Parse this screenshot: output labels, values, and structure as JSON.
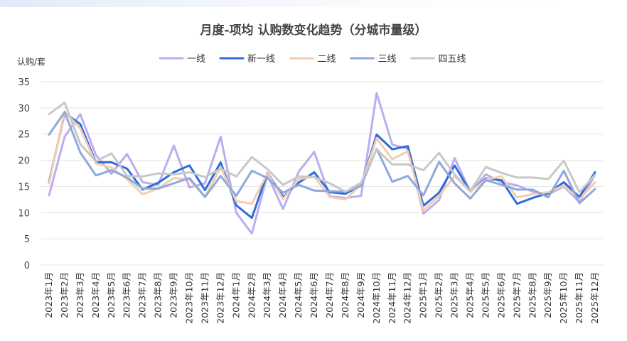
{
  "chart_data": {
    "type": "line",
    "title": "月度-项均  认购数变化趋势（分城市量级）",
    "ylabel": "认购/套",
    "ylim": [
      0,
      35
    ],
    "yticks": [
      0,
      5,
      10,
      15,
      20,
      25,
      30,
      35
    ],
    "grid": true,
    "legend_position": "top",
    "categories": [
      "2023年1月",
      "2023年2月",
      "2023年3月",
      "2023年4月",
      "2023年5月",
      "2023年6月",
      "2023年7月",
      "2023年8月",
      "2023年9月",
      "2023年10月",
      "2023年11月",
      "2023年12月",
      "2024年1月",
      "2024年2月",
      "2024年3月",
      "2024年4月",
      "2024年5月",
      "2024年6月",
      "2024年7月",
      "2024年8月",
      "2024年9月",
      "2024年10月",
      "2024年11月",
      "2024年12月",
      "2025年1月",
      "2025年2月",
      "2025年3月",
      "2025年4月",
      "2025年5月",
      "2025年6月",
      "2025年7月",
      "2025年8月",
      "2025年9月",
      "2025年10月",
      "2025年11月",
      "2025年12月"
    ],
    "series": [
      {
        "name": "一线",
        "color": "#b9aef0",
        "values": [
          13.3,
          24.5,
          28.8,
          21.0,
          17.4,
          21.2,
          15.8,
          15.3,
          22.8,
          14.8,
          15.6,
          24.5,
          10.0,
          6.0,
          17.2,
          10.7,
          17.8,
          21.6,
          13.1,
          12.8,
          13.2,
          32.8,
          23.0,
          22.2,
          9.8,
          12.4,
          20.4,
          14.0,
          17.3,
          15.8,
          15.2,
          14.0,
          13.5,
          15.0,
          12.0,
          17.2
        ]
      },
      {
        "name": "新一线",
        "color": "#2f6bdb",
        "values": [
          15.9,
          29.0,
          26.9,
          19.6,
          19.6,
          18.4,
          14.4,
          15.7,
          17.7,
          19.0,
          14.3,
          19.6,
          11.4,
          9.0,
          17.6,
          13.0,
          15.7,
          17.7,
          13.9,
          13.6,
          15.2,
          24.9,
          22.1,
          22.7,
          11.3,
          13.8,
          19.0,
          14.0,
          16.5,
          16.2,
          11.7,
          12.8,
          13.7,
          15.8,
          13.0,
          17.7
        ]
      },
      {
        "name": "二线",
        "color": "#f4cdb0",
        "values": [
          15.6,
          29.3,
          26.1,
          19.4,
          18.6,
          16.4,
          13.5,
          14.6,
          16.6,
          16.3,
          13.0,
          18.7,
          12.2,
          11.7,
          17.5,
          12.6,
          16.4,
          16.9,
          13.0,
          12.5,
          15.3,
          24.2,
          20.2,
          21.7,
          10.4,
          13.2,
          17.0,
          14.0,
          16.3,
          16.9,
          12.9,
          13.5,
          13.9,
          15.2,
          12.5,
          15.8
        ]
      },
      {
        "name": "三线",
        "color": "#8fa9dc",
        "values": [
          24.9,
          29.2,
          21.5,
          17.1,
          18.1,
          16.7,
          14.6,
          14.6,
          15.6,
          16.6,
          13.0,
          17.0,
          13.2,
          18.0,
          16.6,
          13.8,
          15.3,
          14.2,
          14.1,
          14.0,
          15.1,
          22.2,
          15.9,
          17.0,
          13.3,
          19.7,
          15.6,
          12.7,
          16.2,
          15.3,
          14.4,
          14.4,
          12.9,
          18.0,
          11.8,
          14.5
        ]
      },
      {
        "name": "四五线",
        "color": "#c8c8c8",
        "values": [
          28.8,
          31.0,
          23.1,
          19.8,
          21.3,
          17.0,
          16.9,
          17.5,
          17.3,
          17.7,
          16.8,
          18.4,
          16.9,
          20.6,
          18.3,
          15.3,
          16.9,
          16.8,
          15.6,
          14.0,
          15.7,
          22.1,
          19.2,
          19.2,
          18.1,
          21.4,
          17.3,
          14.1,
          18.7,
          17.6,
          16.7,
          16.7,
          16.4,
          19.9,
          13.9,
          17.2
        ]
      }
    ]
  }
}
